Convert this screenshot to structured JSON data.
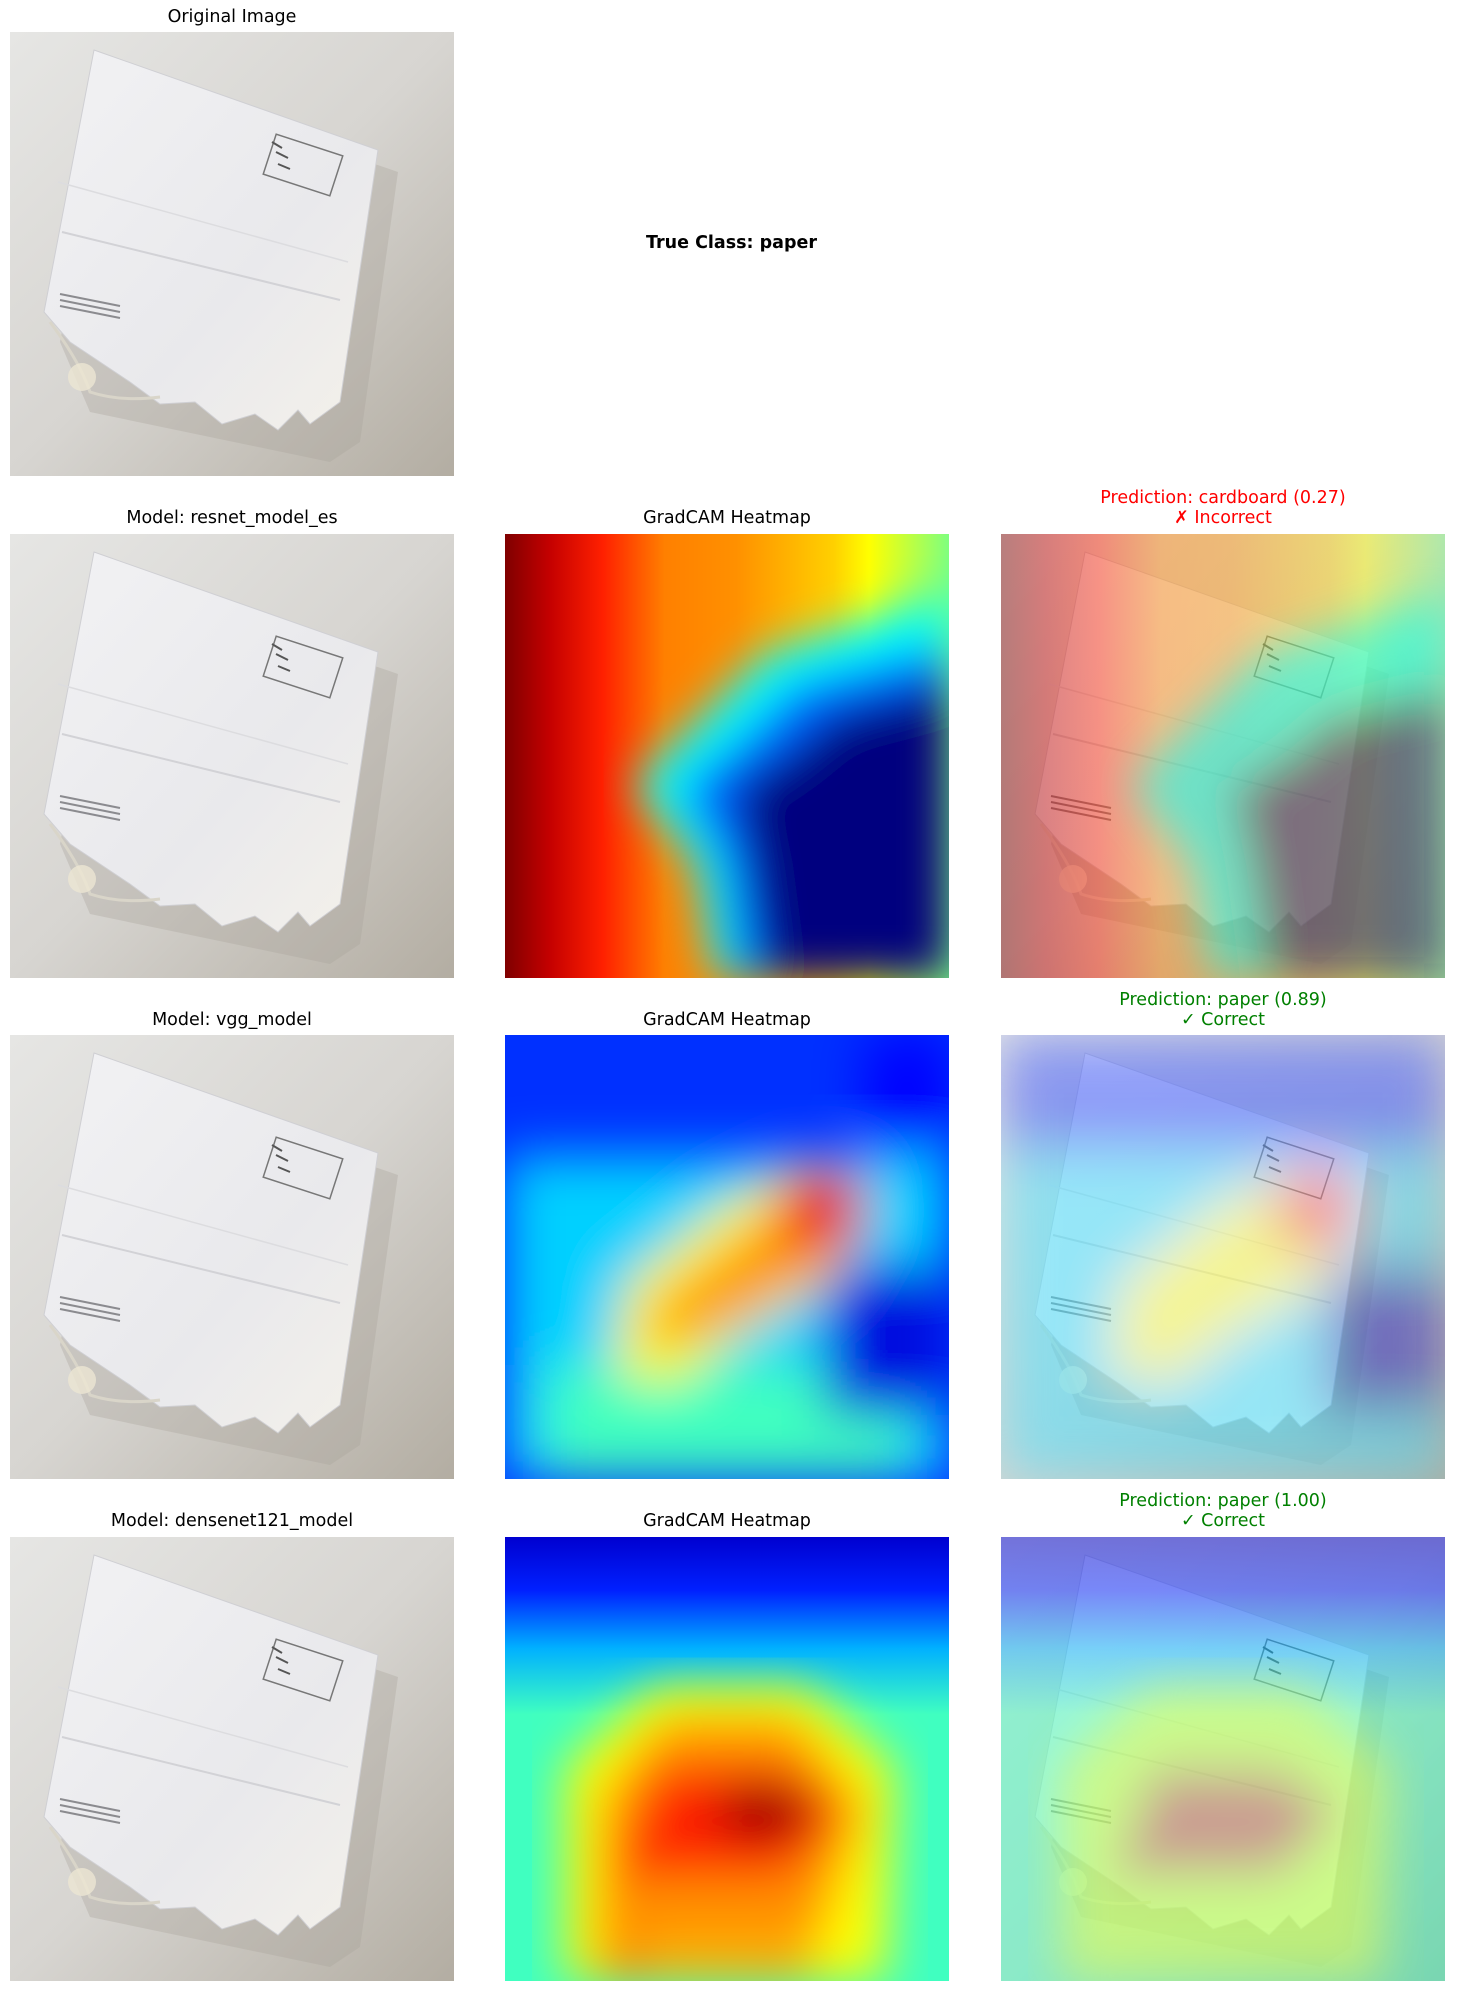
{
  "original": {
    "title": "Original Image"
  },
  "true_class": "True Class: paper",
  "rows": [
    {
      "model_title": "Model: resnet_model_es",
      "heatmap_title": "GradCAM Heatmap",
      "prediction": "Prediction: cardboard (0.27)",
      "verdict": "✗ Incorrect",
      "status_color": "#ff0000"
    },
    {
      "model_title": "Model: vgg_model",
      "heatmap_title": "GradCAM Heatmap",
      "prediction": "Prediction: paper (0.89)",
      "verdict": "✓ Correct",
      "status_color": "#008000"
    },
    {
      "model_title": "Model: densenet121_model",
      "heatmap_title": "GradCAM Heatmap",
      "prediction": "Prediction: paper (1.00)",
      "verdict": "✓ Correct",
      "status_color": "#008000"
    }
  ],
  "colors": {
    "jet_blue": "#00007f",
    "jet_red": "#7f0000",
    "background": "#ffffff"
  }
}
